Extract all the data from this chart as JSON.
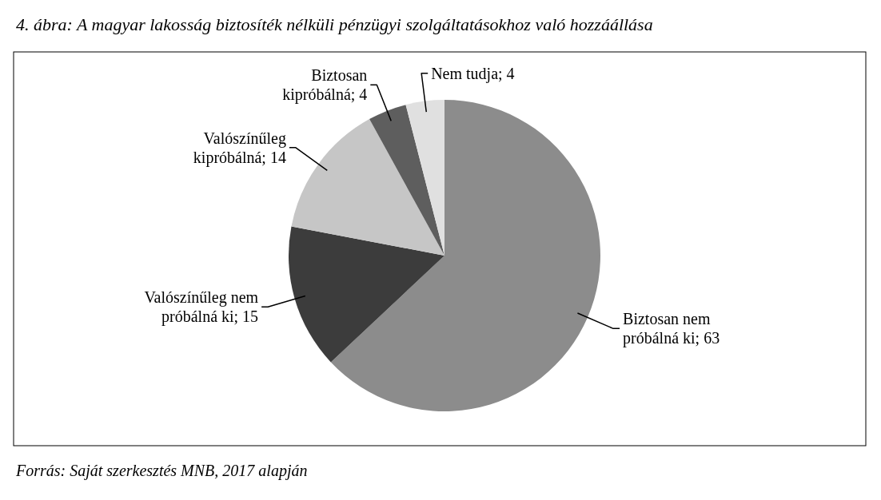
{
  "chart_data": {
    "type": "pie",
    "title": "4. ábra: A magyar lakosság biztosíték nélküli pénzügyi szolgáltatásokhoz való hozzáállása",
    "categories": [
      "Biztosan nem próbálná ki; 63",
      "Valószínűleg nem próbálná ki; 15",
      "Valószínűleg kipróbálná; 14",
      "Biztosan kipróbálná; 4",
      "Nem tudja; 4"
    ],
    "values": [
      63,
      15,
      14,
      4,
      4
    ],
    "colors": [
      "#8c8c8c",
      "#3c3c3c",
      "#c6c6c6",
      "#5e5e5e",
      "#e0e0e0"
    ],
    "annotations": [
      "Forrás: Saját szerkesztés MNB, 2017 alapján"
    ]
  }
}
